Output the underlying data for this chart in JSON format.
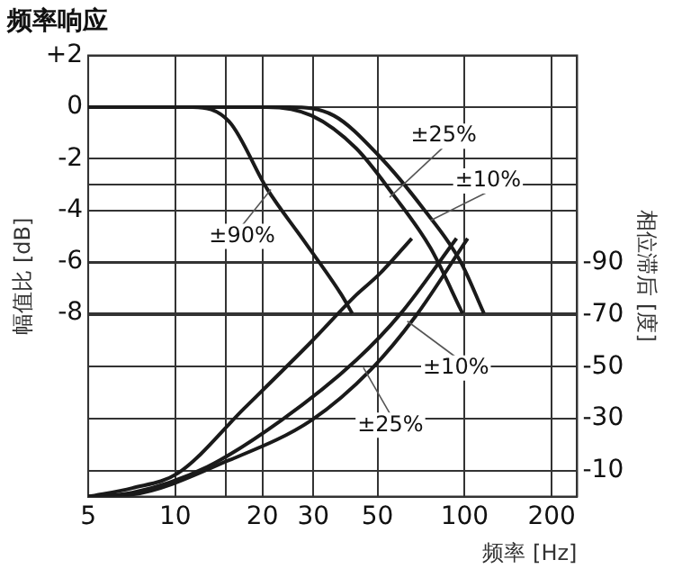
{
  "chart_data": {
    "type": "line",
    "title": "频率响应",
    "xlabel": "频率 [Hz]",
    "ylabel": "幅值比 [dB]",
    "y2label": "相位滞后 [度]",
    "log": "x",
    "xlim": [
      5,
      245
    ],
    "xticks": [
      5,
      10,
      {
        "value": 15,
        "label": null
      },
      20,
      30,
      50,
      100,
      200
    ],
    "ylim": [
      -15.1,
      2
    ],
    "yticks": [
      {
        "value": 2,
        "label": "+2"
      },
      0,
      -2,
      -4,
      -6,
      -8
    ],
    "y2lim": [
      0,
      -170
    ],
    "y2ticks": [
      -90,
      -70,
      -50,
      -30,
      -10
    ],
    "grid": true,
    "legend": false,
    "marker": "none",
    "line_style": "solid",
    "ref_lines": [
      {
        "axis": "y",
        "value": -3,
        "color": "#333333"
      }
    ],
    "series": [
      {
        "color": "#1a1a1a",
        "x": [
          5,
          8,
          11.5,
          15.4,
          20.7,
          27.9,
          37.4,
          40.9
        ],
        "values": [
          0,
          0,
          0,
          -0.58,
          -3.15,
          -5.2,
          -7.25,
          -8
        ]
      },
      {
        "color": "#1a1a1a",
        "x": [
          5,
          10,
          20.7,
          29.6,
          42.2,
          56.7,
          76.2,
          98.4
        ],
        "values": [
          0,
          0,
          0,
          -0.33,
          -1.6,
          -3.4,
          -5.46,
          -8
        ]
      },
      {
        "color": "#1a1a1a",
        "x": [
          5,
          10,
          24.7,
          35.3,
          50.4,
          71.8,
          96.6,
          116.7
        ],
        "values": [
          0,
          0,
          0,
          -0.33,
          -1.87,
          -3.92,
          -5.97,
          -8
        ]
      },
      {
        "color": "#1a1a1a",
        "axis": "y2",
        "x": [
          5,
          7.1,
          10.2,
          17.3,
          29.6,
          42.2,
          50.4,
          65.7
        ],
        "values": [
          0,
          -3.3,
          -9,
          -34,
          -59.8,
          -77.7,
          -85.4,
          -99.5
        ]
      },
      {
        "color": "#1a1a1a",
        "axis": "y2",
        "x": [
          5,
          7.1,
          12.9,
          23.3,
          42.2,
          60.1,
          93.8
        ],
        "values": [
          0,
          -1.5,
          -11.5,
          -29.5,
          -52.6,
          -70.5,
          -99.5
        ]
      },
      {
        "color": "#1a1a1a",
        "axis": "y2",
        "x": [
          5,
          7.1,
          15.4,
          29.6,
          47.5,
          67.7,
          102.5
        ],
        "values": [
          0,
          -0.8,
          -14.1,
          -29.5,
          -49,
          -69.5,
          -99.5
        ]
      }
    ],
    "annotations": [
      {
        "text": "±90%",
        "x": 21.4,
        "y": -3.2
      },
      {
        "text": "±25%",
        "x": 55.1,
        "y": -3.5
      },
      {
        "text": "±10%",
        "x": 76.2,
        "y": -4.4
      },
      {
        "text": "±10%",
        "x": 63.4,
        "y": -8.3
      },
      {
        "text": "±25%",
        "x": 44.7,
        "y": -10.1
      }
    ]
  }
}
